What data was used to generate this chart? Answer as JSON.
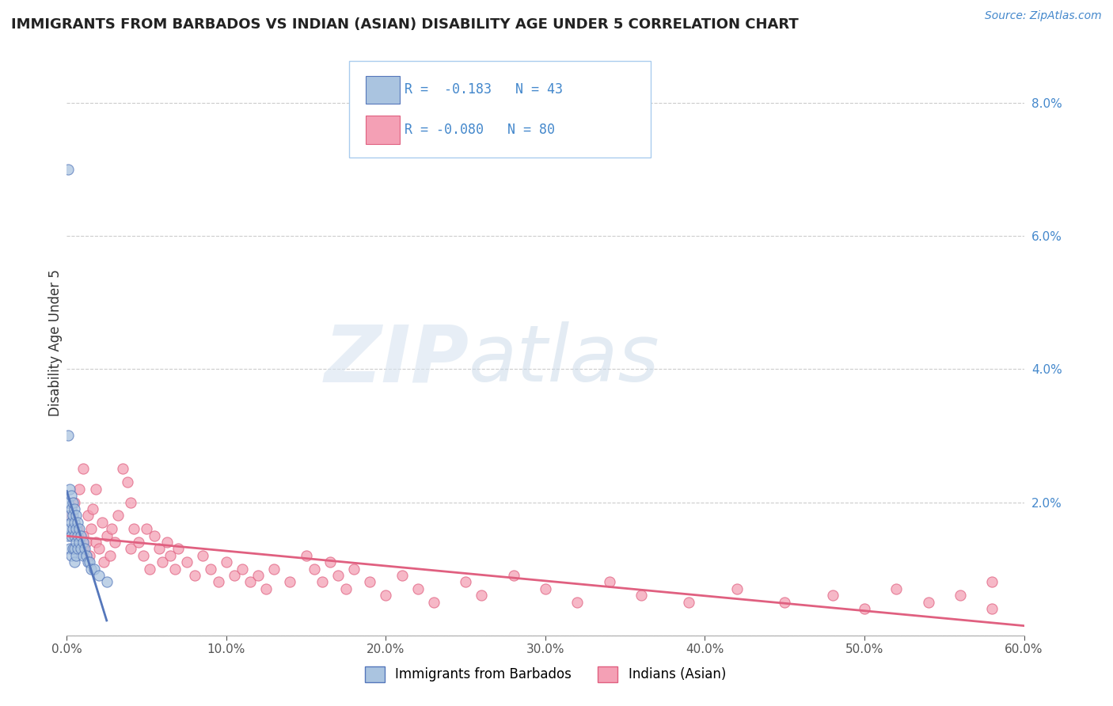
{
  "title": "IMMIGRANTS FROM BARBADOS VS INDIAN (ASIAN) DISABILITY AGE UNDER 5 CORRELATION CHART",
  "source": "Source: ZipAtlas.com",
  "ylabel": "Disability Age Under 5",
  "xlim": [
    0.0,
    0.6
  ],
  "ylim": [
    0.0,
    0.088
  ],
  "yticks": [
    0.0,
    0.02,
    0.04,
    0.06,
    0.08
  ],
  "yticklabels": [
    "",
    "2.0%",
    "4.0%",
    "6.0%",
    "8.0%"
  ],
  "xticks": [
    0.0,
    0.1,
    0.2,
    0.3,
    0.4,
    0.5,
    0.6
  ],
  "xticklabels": [
    "0.0%",
    "10.0%",
    "20.0%",
    "30.0%",
    "40.0%",
    "50.0%",
    "60.0%"
  ],
  "legend_r1": "R =  -0.183",
  "legend_n1": "N = 43",
  "legend_r2": "R = -0.080",
  "legend_n2": "N = 80",
  "color_barbados": "#aac4e0",
  "color_indian": "#f4a0b5",
  "color_barbados_line": "#5577bb",
  "color_indian_line": "#e06080",
  "color_legend_r": "#4488cc",
  "background_color": "#ffffff",
  "grid_color": "#cccccc",
  "barbados_x": [
    0.001,
    0.001,
    0.001,
    0.002,
    0.002,
    0.002,
    0.002,
    0.003,
    0.003,
    0.003,
    0.003,
    0.003,
    0.004,
    0.004,
    0.004,
    0.004,
    0.005,
    0.005,
    0.005,
    0.005,
    0.005,
    0.006,
    0.006,
    0.006,
    0.006,
    0.007,
    0.007,
    0.007,
    0.008,
    0.008,
    0.009,
    0.009,
    0.01,
    0.01,
    0.011,
    0.012,
    0.013,
    0.014,
    0.015,
    0.017,
    0.02,
    0.025,
    0.001
  ],
  "barbados_y": [
    0.07,
    0.02,
    0.015,
    0.022,
    0.018,
    0.016,
    0.013,
    0.021,
    0.019,
    0.017,
    0.015,
    0.012,
    0.02,
    0.018,
    0.016,
    0.013,
    0.019,
    0.017,
    0.015,
    0.013,
    0.011,
    0.018,
    0.016,
    0.014,
    0.012,
    0.017,
    0.015,
    0.013,
    0.016,
    0.014,
    0.015,
    0.013,
    0.014,
    0.012,
    0.013,
    0.012,
    0.011,
    0.011,
    0.01,
    0.01,
    0.009,
    0.008,
    0.03
  ],
  "indian_x": [
    0.003,
    0.005,
    0.007,
    0.008,
    0.01,
    0.01,
    0.012,
    0.013,
    0.014,
    0.015,
    0.016,
    0.018,
    0.018,
    0.02,
    0.022,
    0.023,
    0.025,
    0.027,
    0.028,
    0.03,
    0.032,
    0.035,
    0.038,
    0.04,
    0.04,
    0.042,
    0.045,
    0.048,
    0.05,
    0.052,
    0.055,
    0.058,
    0.06,
    0.063,
    0.065,
    0.068,
    0.07,
    0.075,
    0.08,
    0.085,
    0.09,
    0.095,
    0.1,
    0.105,
    0.11,
    0.115,
    0.12,
    0.125,
    0.13,
    0.14,
    0.15,
    0.155,
    0.16,
    0.165,
    0.17,
    0.175,
    0.18,
    0.19,
    0.2,
    0.21,
    0.22,
    0.23,
    0.25,
    0.26,
    0.28,
    0.3,
    0.32,
    0.34,
    0.36,
    0.39,
    0.42,
    0.45,
    0.48,
    0.5,
    0.52,
    0.54,
    0.56,
    0.58,
    0.58,
    0.01
  ],
  "indian_y": [
    0.018,
    0.02,
    0.016,
    0.022,
    0.015,
    0.025,
    0.014,
    0.018,
    0.012,
    0.016,
    0.019,
    0.014,
    0.022,
    0.013,
    0.017,
    0.011,
    0.015,
    0.012,
    0.016,
    0.014,
    0.018,
    0.025,
    0.023,
    0.013,
    0.02,
    0.016,
    0.014,
    0.012,
    0.016,
    0.01,
    0.015,
    0.013,
    0.011,
    0.014,
    0.012,
    0.01,
    0.013,
    0.011,
    0.009,
    0.012,
    0.01,
    0.008,
    0.011,
    0.009,
    0.01,
    0.008,
    0.009,
    0.007,
    0.01,
    0.008,
    0.012,
    0.01,
    0.008,
    0.011,
    0.009,
    0.007,
    0.01,
    0.008,
    0.006,
    0.009,
    0.007,
    0.005,
    0.008,
    0.006,
    0.009,
    0.007,
    0.005,
    0.008,
    0.006,
    0.005,
    0.007,
    0.005,
    0.006,
    0.004,
    0.007,
    0.005,
    0.006,
    0.008,
    0.004,
    0.013
  ]
}
